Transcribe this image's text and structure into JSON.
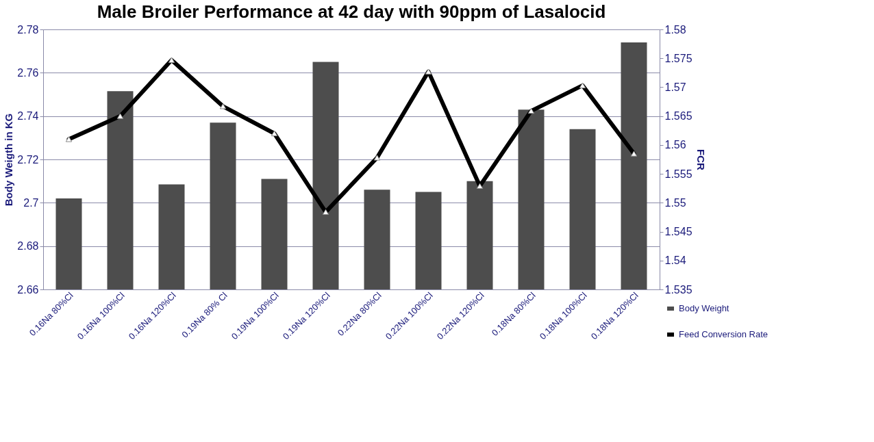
{
  "chart_data": {
    "type": "bar",
    "title": "Male Broiler Performance at 42 day with 90ppm of Lasalocid",
    "ylabel": "Body Weigth in KG",
    "y2label": "FCR",
    "categories": [
      "0.16Na 80%Cl",
      "0.16Na 100%Cl",
      "0.16Na 120%Cl",
      "0.19Na 80% Cl",
      "0.19Na 100%Cl",
      "0.19Na 120%Cl",
      "0.22Na 80%Cl",
      "0.22Na 100%Cl",
      "0.22Na 120%Cl",
      "0.18Na 80%Cl",
      "0.18Na 100%Cl",
      "0.18Na 120%Cl"
    ],
    "series": [
      {
        "name": "Body Weight",
        "color": "#4d4d4d",
        "values": [
          2.702,
          2.7515,
          2.7085,
          2.737,
          2.711,
          2.765,
          2.706,
          2.705,
          2.71,
          2.743,
          2.734,
          2.774
        ]
      },
      {
        "name": "Feed Conversion Rate",
        "type": "line",
        "axis": "y2",
        "color": "#000000",
        "marker": "triangle",
        "values": [
          1.561,
          1.565,
          1.5747,
          1.5667,
          1.562,
          1.5484,
          1.5578,
          1.5727,
          1.5529,
          1.5659,
          1.5703,
          1.5585
        ]
      }
    ],
    "ylim": [
      2.66,
      2.78
    ],
    "yticks": [
      2.66,
      2.68,
      2.7,
      2.72,
      2.74,
      2.76,
      2.78
    ],
    "y2lim": [
      1.535,
      1.58
    ],
    "y2ticks": [
      1.535,
      1.54,
      1.545,
      1.55,
      1.555,
      1.56,
      1.565,
      1.57,
      1.575,
      1.58
    ],
    "grid": "y",
    "legend": "bottom right"
  }
}
